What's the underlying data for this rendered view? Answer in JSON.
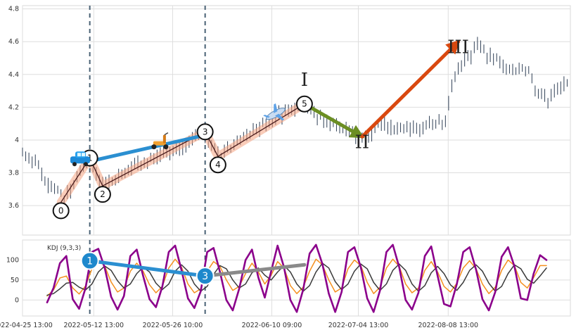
{
  "chart_data": [
    {
      "type": "candlestick",
      "grid": true,
      "ylim": [
        3.42,
        4.82
      ],
      "y_ticks": [
        3.6,
        3.8,
        4.0,
        4.2,
        4.4,
        4.6,
        4.8
      ],
      "x_ticks": [
        "2022-04-25 13:00",
        "2022-05-12 13:00",
        "2022-05-26 10:00",
        "2022-06-10 09:00",
        "2022-07-04 13:00",
        "2022-08-08 13:00"
      ],
      "price_series": [
        {
          "segment": "late-april",
          "x": [
            0,
            2,
            4,
            6,
            8,
            10,
            12
          ],
          "y": [
            3.93,
            3.89,
            3.86,
            3.8,
            3.74,
            3.7,
            3.66
          ]
        },
        {
          "segment": "may-rally",
          "x": [
            13,
            15,
            17,
            19,
            21
          ],
          "y": [
            3.64,
            3.7,
            3.78,
            3.84,
            3.88
          ]
        },
        {
          "segment": "may-pullback",
          "x": [
            22,
            24,
            26
          ],
          "y": [
            3.82,
            3.76,
            3.72
          ]
        },
        {
          "segment": "may-uptrend",
          "x": [
            28,
            32,
            36,
            40,
            44,
            48,
            52,
            54,
            56
          ],
          "y": [
            3.75,
            3.8,
            3.84,
            3.88,
            3.92,
            3.95,
            3.99,
            4.02,
            4.05
          ]
        },
        {
          "segment": "late-may-dip",
          "x": [
            58,
            60,
            62
          ],
          "y": [
            4.0,
            3.94,
            3.9
          ]
        },
        {
          "segment": "june-rally",
          "x": [
            64,
            68,
            72,
            76,
            80,
            84,
            88
          ],
          "y": [
            3.95,
            4.0,
            4.06,
            4.1,
            4.15,
            4.19,
            4.22
          ]
        },
        {
          "segment": "june-decline",
          "x": [
            90,
            94,
            98,
            102,
            106
          ],
          "y": [
            4.18,
            4.12,
            4.08,
            4.05,
            4.02
          ]
        },
        {
          "segment": "july-range",
          "x": [
            108,
            112,
            116,
            120,
            124,
            128,
            132
          ],
          "y": [
            4.04,
            4.1,
            4.06,
            4.08,
            4.05,
            4.12,
            4.09
          ]
        },
        {
          "segment": "july-spike",
          "x": [
            134,
            136,
            138
          ],
          "y": [
            4.35,
            4.42,
            4.48
          ]
        },
        {
          "segment": "august-top",
          "x": [
            140,
            142,
            144,
            146,
            148,
            150,
            152,
            154,
            156,
            158
          ],
          "y": [
            4.52,
            4.58,
            4.55,
            4.5,
            4.49,
            4.45,
            4.43,
            4.42,
            4.45,
            4.43
          ]
        },
        {
          "segment": "late-august",
          "x": [
            160,
            162,
            164,
            166,
            168,
            170
          ],
          "y": [
            4.3,
            4.27,
            4.25,
            4.3,
            4.32,
            4.35
          ]
        }
      ],
      "pivots": [
        {
          "label": "0",
          "x": 12,
          "y": 3.62
        },
        {
          "label": "1",
          "x": 21,
          "y": 3.89
        },
        {
          "label": "2",
          "x": 25,
          "y": 3.72
        },
        {
          "label": "3",
          "x": 57,
          "y": 4.05
        },
        {
          "label": "4",
          "x": 61,
          "y": 3.9
        },
        {
          "label": "5",
          "x": 88,
          "y": 4.22
        }
      ],
      "wave_labels": [
        {
          "label": "I",
          "x": 88,
          "y": 4.33
        },
        {
          "label": "II",
          "x": 106,
          "y": 3.95
        },
        {
          "label": "III",
          "x": 136,
          "y": 4.53
        }
      ],
      "projection_arrows": [
        {
          "from": [
            88,
            4.22
          ],
          "to": [
            106,
            4.02
          ],
          "color": "#6b8e23"
        },
        {
          "from": [
            106,
            4.02
          ],
          "to": [
            136,
            4.6
          ],
          "color": "#d9480f"
        }
      ],
      "marker_icons": [
        {
          "icon": "car-icon",
          "x": 18,
          "y": 3.87
        },
        {
          "icon": "scooter-icon",
          "x": 43,
          "y": 3.98
        },
        {
          "icon": "airplane-icon",
          "x": 79,
          "y": 4.16
        }
      ],
      "vertical_markers": [
        21,
        57
      ]
    },
    {
      "type": "line",
      "label": "KDJ (9,3,3)",
      "grid": true,
      "ylim": [
        -40,
        150
      ],
      "y_ticks": [
        0,
        50,
        100
      ],
      "series": [
        {
          "key": "K",
          "color": "#f5901e",
          "values": [
            10,
            25,
            55,
            60,
            30,
            15,
            35,
            78,
            100,
            85,
            45,
            20,
            30,
            72,
            92,
            72,
            38,
            18,
            34,
            80,
            102,
            82,
            40,
            18,
            28,
            72,
            96,
            84,
            50,
            24,
            34,
            66,
            92,
            70,
            40,
            62,
            96,
            80,
            36,
            16,
            32,
            72,
            102,
            88,
            50,
            20,
            30,
            78,
            100,
            86,
            44,
            16,
            32,
            80,
            102,
            84,
            40,
            18,
            30,
            74,
            96,
            70,
            34,
            20,
            42,
            80,
            98,
            78,
            40,
            16,
            32,
            74,
            100,
            86,
            44,
            30,
            56,
            86,
            86
          ]
        },
        {
          "key": "D",
          "color": "#3a3a3a",
          "values": [
            12,
            16,
            28,
            42,
            44,
            32,
            25,
            40,
            70,
            85,
            74,
            48,
            30,
            40,
            66,
            82,
            70,
            42,
            26,
            40,
            72,
            88,
            72,
            40,
            22,
            34,
            64,
            86,
            78,
            50,
            30,
            40,
            68,
            80,
            62,
            50,
            70,
            86,
            70,
            40,
            22,
            36,
            70,
            92,
            80,
            46,
            26,
            40,
            72,
            90,
            78,
            44,
            24,
            40,
            74,
            90,
            74,
            40,
            22,
            36,
            68,
            84,
            66,
            38,
            24,
            44,
            74,
            88,
            72,
            42,
            22,
            34,
            66,
            88,
            78,
            52,
            42,
            60,
            80
          ]
        },
        {
          "key": "J",
          "color": "#8b008b",
          "values": [
            -6,
            30,
            92,
            110,
            2,
            -22,
            30,
            120,
            128,
            80,
            8,
            -24,
            10,
            110,
            126,
            60,
            2,
            -18,
            34,
            120,
            136,
            74,
            4,
            -20,
            22,
            120,
            130,
            70,
            0,
            -26,
            28,
            100,
            126,
            56,
            6,
            72,
            136,
            82,
            0,
            -30,
            26,
            116,
            138,
            90,
            16,
            -30,
            20,
            120,
            132,
            82,
            4,
            -30,
            24,
            120,
            138,
            82,
            0,
            -24,
            18,
            110,
            134,
            60,
            -10,
            -16,
            40,
            120,
            132,
            76,
            2,
            -26,
            20,
            108,
            132,
            84,
            4,
            0,
            66,
            112,
            100
          ]
        }
      ],
      "pivot_markers": [
        {
          "label": "1",
          "x": 21,
          "y": 98,
          "fill": "#1e88cc"
        },
        {
          "label": "3",
          "x": 57,
          "y": 60,
          "fill": "#1e88cc"
        }
      ],
      "connector_lines": [
        {
          "from": [
            21,
            98
          ],
          "to": [
            57,
            60
          ],
          "color": "#2b8fd1"
        },
        {
          "from": [
            57,
            60
          ],
          "to": [
            88,
            88
          ],
          "color": "#8a8a8a"
        }
      ]
    }
  ]
}
